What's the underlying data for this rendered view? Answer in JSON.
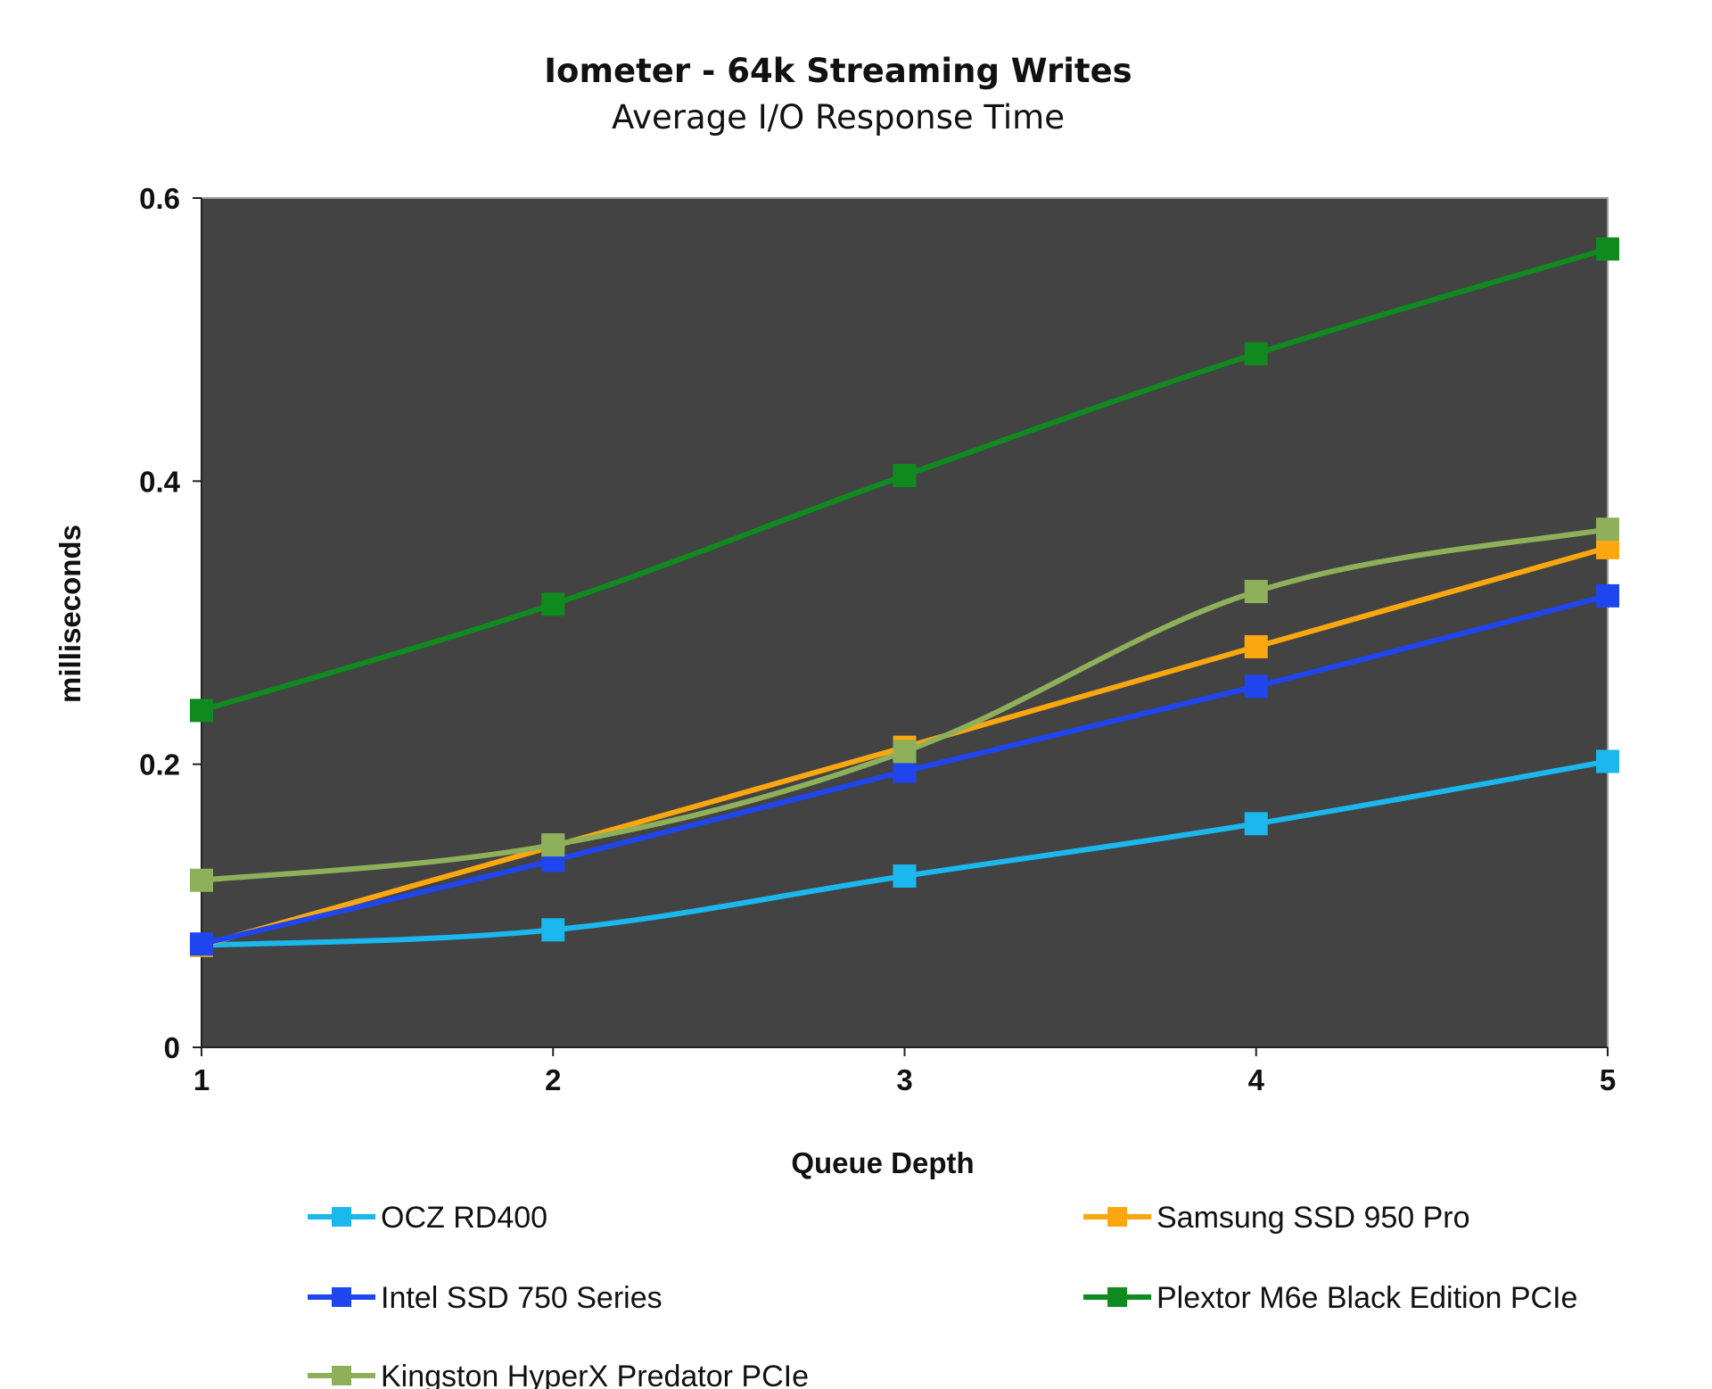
{
  "chart_data": {
    "type": "line",
    "title": "Iometer - 64k Streaming Writes",
    "subtitle": "Average I/O Response Time",
    "xlabel": "Queue Depth",
    "ylabel": "milliseconds",
    "x": [
      1,
      2,
      3,
      4,
      5
    ],
    "x_tick_labels": [
      "1",
      "2",
      "3",
      "4",
      "5"
    ],
    "ylim": [
      0,
      0.6
    ],
    "y_ticks": [
      0,
      0.2,
      0.4,
      0.6
    ],
    "y_tick_labels": [
      "0",
      "0.2",
      "0.4",
      "0.6"
    ],
    "plot_background": "#434343",
    "grid": false,
    "legend_position": "bottom",
    "series": [
      {
        "name": "OCZ RD400",
        "color": "#1ab8ee",
        "values": [
          0.072,
          0.083,
          0.121,
          0.158,
          0.202
        ]
      },
      {
        "name": "Samsung SSD 950 Pro",
        "color": "#fca70f",
        "values": [
          0.072,
          0.142,
          0.212,
          0.283,
          0.353
        ]
      },
      {
        "name": "Intel SSD 750 Series",
        "color": "#1f45ef",
        "values": [
          0.073,
          0.132,
          0.195,
          0.255,
          0.319
        ]
      },
      {
        "name": "Plextor M6e Black Edition PCIe",
        "color": "#0f8a1e",
        "values": [
          0.238,
          0.313,
          0.404,
          0.49,
          0.564
        ]
      },
      {
        "name": "Kingston HyperX Predator PCIe",
        "color": "#8fb05b",
        "values": [
          0.118,
          0.143,
          0.209,
          0.322,
          0.366
        ]
      }
    ]
  }
}
